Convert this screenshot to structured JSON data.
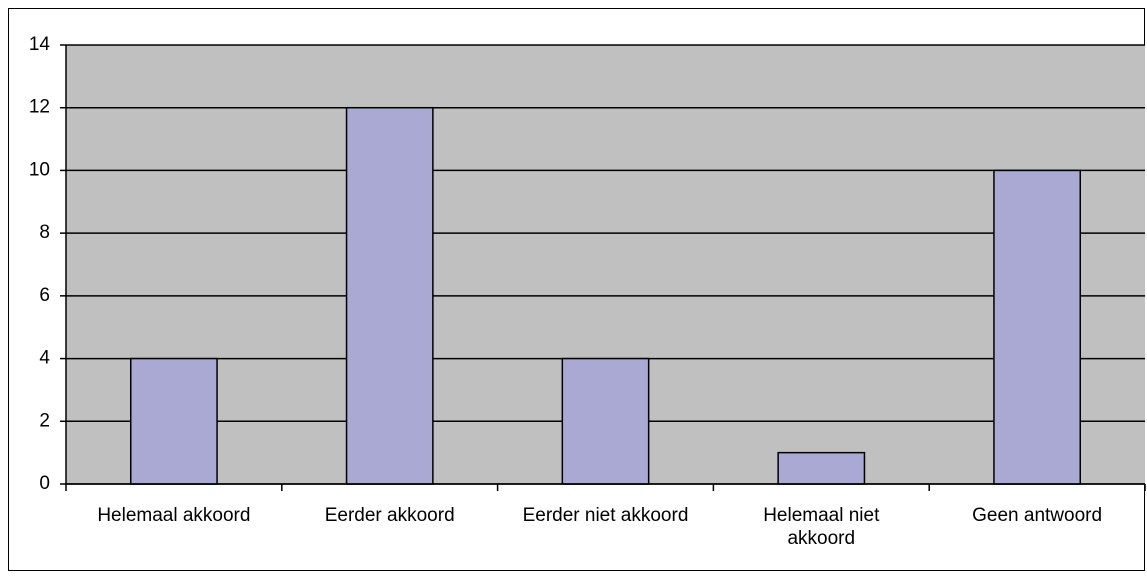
{
  "chart_data": {
    "type": "bar",
    "categories": [
      "Helemaal akkoord",
      "Eerder akkoord",
      "Eerder niet akkoord",
      "Helemaal niet akkoord",
      "Geen antwoord"
    ],
    "values": [
      4,
      12,
      4,
      1,
      10
    ],
    "color": "#a9a9d3",
    "ylim": [
      0,
      14
    ],
    "yticks": [
      0,
      2,
      4,
      6,
      8,
      10,
      12,
      14
    ],
    "grid": true
  }
}
